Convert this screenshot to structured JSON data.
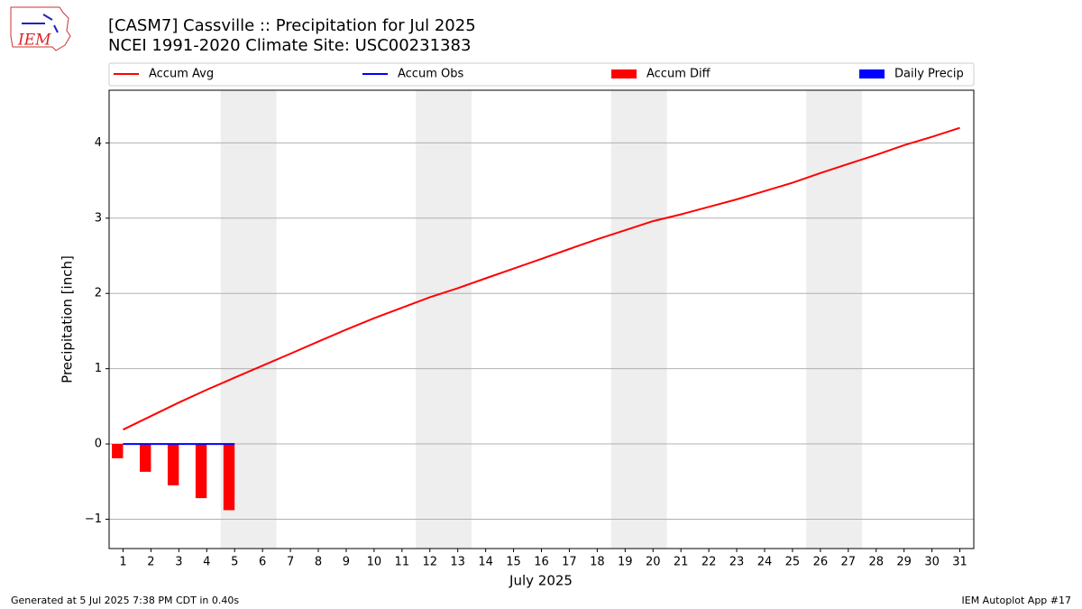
{
  "logo_text": "IEM",
  "footer_left": "Generated at 5 Jul 2025 7:38 PM CDT in 0.40s",
  "footer_right": "IEM Autoplot App #17",
  "chart_data": {
    "type": "line",
    "title": "[CASM7] Cassville :: Precipitation for Jul 2025",
    "subtitle": "NCEI 1991-2020 Climate Site: USC00231383",
    "x_label": "July 2025",
    "y_label": "Precipitation [inch]",
    "categories": [
      "1",
      "2",
      "3",
      "4",
      "5",
      "6",
      "7",
      "8",
      "9",
      "10",
      "11",
      "12",
      "13",
      "14",
      "15",
      "16",
      "17",
      "18",
      "19",
      "20",
      "21",
      "22",
      "23",
      "24",
      "25",
      "26",
      "27",
      "28",
      "29",
      "30",
      "31"
    ],
    "ylim": [
      -1.39,
      4.7
    ],
    "yticks": [
      {
        "value": -1,
        "label": "−1"
      },
      0,
      1,
      2,
      3,
      4
    ],
    "grid": true,
    "legend": "top",
    "series": [
      {
        "name": "Accum Avg",
        "type": "line",
        "color": "#ff0000",
        "values": [
          0.19,
          0.37,
          0.55,
          0.72,
          0.88,
          1.04,
          1.2,
          1.36,
          1.52,
          1.67,
          1.81,
          1.95,
          2.07,
          2.2,
          2.33,
          2.46,
          2.59,
          2.72,
          2.84,
          2.96,
          3.05,
          3.15,
          3.25,
          3.36,
          3.47,
          3.6,
          3.72,
          3.84,
          3.97,
          4.08,
          4.2
        ]
      },
      {
        "name": "Accum Obs",
        "type": "line",
        "color": "#0000ff",
        "values": [
          0,
          0,
          0,
          0,
          0,
          null,
          null,
          null,
          null,
          null,
          null,
          null,
          null,
          null,
          null,
          null,
          null,
          null,
          null,
          null,
          null,
          null,
          null,
          null,
          null,
          null,
          null,
          null,
          null,
          null,
          null
        ]
      },
      {
        "name": "Accum Diff",
        "type": "bar",
        "color": "#ff0000",
        "values": [
          -0.19,
          -0.37,
          -0.55,
          -0.72,
          -0.88,
          null,
          null,
          null,
          null,
          null,
          null,
          null,
          null,
          null,
          null,
          null,
          null,
          null,
          null,
          null,
          null,
          null,
          null,
          null,
          null,
          null,
          null,
          null,
          null,
          null,
          null
        ]
      },
      {
        "name": "Daily Precip",
        "type": "bar",
        "color": "#0000ff",
        "values": [
          0,
          0,
          0,
          0,
          0,
          null,
          null,
          null,
          null,
          null,
          null,
          null,
          null,
          null,
          null,
          null,
          null,
          null,
          null,
          null,
          null,
          null,
          null,
          null,
          null,
          null,
          null,
          null,
          null,
          null,
          null
        ]
      }
    ]
  }
}
